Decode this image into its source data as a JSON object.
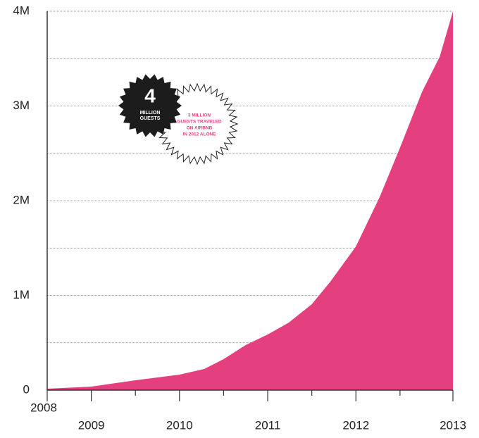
{
  "chart_data": {
    "type": "area",
    "x": [
      2008.5,
      2009,
      2009.5,
      2010,
      2010.28,
      2010.5,
      2010.75,
      2011,
      2011.24,
      2011.5,
      2011.71,
      2012,
      2012.27,
      2012.5,
      2012.75,
      2012.95,
      2013.1
    ],
    "values": [
      15000,
      37000,
      104000,
      164000,
      223000,
      327000,
      476000,
      587000,
      714000,
      907000,
      1145000,
      1517000,
      2040000,
      2560000,
      3150000,
      3520000,
      4000000
    ],
    "color": "#e4407f",
    "xlim": [
      2008.5,
      2013.1
    ],
    "xticks": [
      {
        "value": 2008.5,
        "label": "2008"
      },
      2009,
      2010,
      2011,
      2012,
      {
        "value": 2013.1,
        "label": "2013"
      }
    ],
    "minor_xticks": [
      2009.5,
      2010.5,
      2011.5,
      2012.5
    ],
    "ylim": [
      0,
      4000000
    ],
    "yticks": [
      {
        "value": 0,
        "label": "0"
      },
      {
        "value": 1000000,
        "label": "1M"
      },
      {
        "value": 2000000,
        "label": "2M"
      },
      {
        "value": 3000000,
        "label": "3M"
      },
      {
        "value": 4000000,
        "label": "4M"
      }
    ],
    "minor_yticks": [
      500000,
      1500000,
      2500000,
      3500000
    ],
    "grid": true,
    "annotations": {
      "badge_number": "4",
      "badge_text": [
        "MILLION",
        "GUESTS"
      ],
      "note": [
        "3 MILLION",
        "GUESTS TRAVELED",
        "ON AIRBNB",
        "IN 2012 ALONE"
      ]
    }
  }
}
